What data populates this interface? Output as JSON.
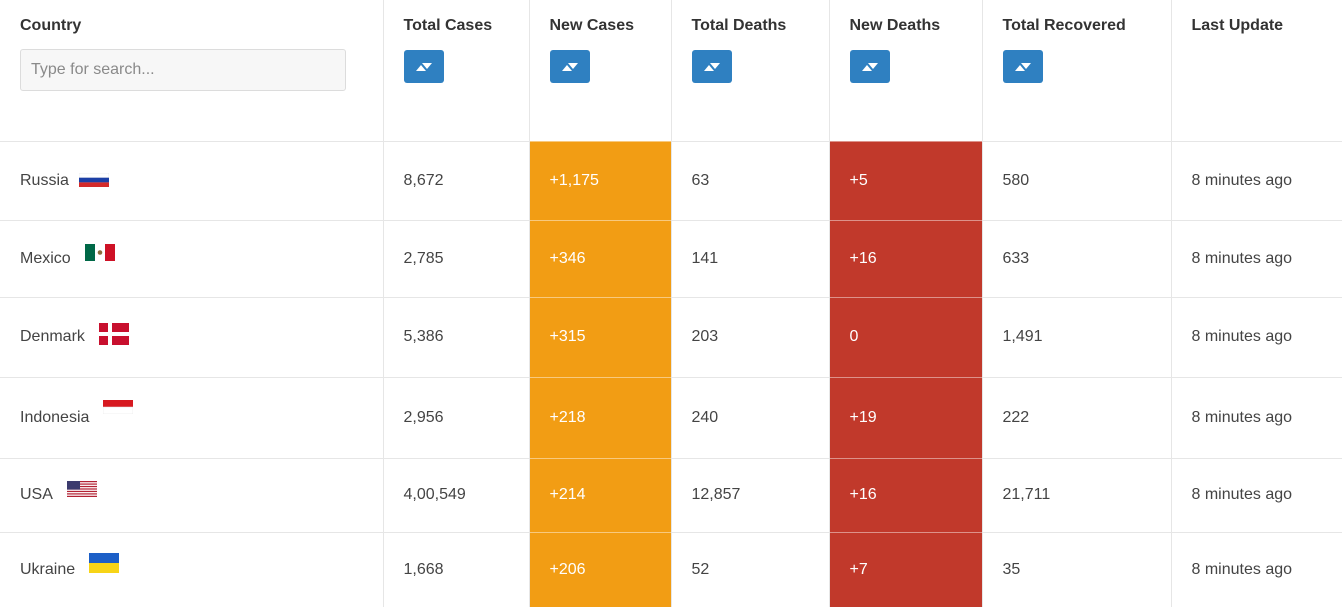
{
  "headers": {
    "country": "Country",
    "total_cases": "Total Cases",
    "new_cases": "New Cases",
    "total_deaths": "Total Deaths",
    "new_deaths": "New Deaths",
    "total_recovered": "Total Recovered",
    "last_update": "Last Update"
  },
  "search": {
    "placeholder": "Type for search..."
  },
  "sort_icon": "sort-toggle-icon",
  "colors": {
    "new_cases_bg": "#f29d14",
    "new_deaths_bg": "#c1392b",
    "sort_button_bg": "#2f80c1"
  },
  "rows": [
    {
      "country": "Russia",
      "flag": "russia-flag-icon",
      "total_cases": "8,672",
      "new_cases": "+1,175",
      "total_deaths": "63",
      "new_deaths": "+5",
      "total_recovered": "580",
      "last_update": "8 minutes ago"
    },
    {
      "country": "Mexico",
      "flag": "mexico-flag-icon",
      "total_cases": "2,785",
      "new_cases": "+346",
      "total_deaths": "141",
      "new_deaths": "+16",
      "total_recovered": "633",
      "last_update": "8 minutes ago"
    },
    {
      "country": "Denmark",
      "flag": "denmark-flag-icon",
      "total_cases": "5,386",
      "new_cases": "+315",
      "total_deaths": "203",
      "new_deaths": "0",
      "total_recovered": "1,491",
      "last_update": "8 minutes ago"
    },
    {
      "country": "Indonesia",
      "flag": "indonesia-flag-icon",
      "total_cases": "2,956",
      "new_cases": "+218",
      "total_deaths": "240",
      "new_deaths": "+19",
      "total_recovered": "222",
      "last_update": "8 minutes ago"
    },
    {
      "country": "USA",
      "flag": "usa-flag-icon",
      "total_cases": "4,00,549",
      "new_cases": "+214",
      "total_deaths": "12,857",
      "new_deaths": "+16",
      "total_recovered": "21,711",
      "last_update": "8 minutes ago"
    },
    {
      "country": "Ukraine",
      "flag": "ukraine-flag-icon",
      "total_cases": "1,668",
      "new_cases": "+206",
      "total_deaths": "52",
      "new_deaths": "+7",
      "total_recovered": "35",
      "last_update": "8 minutes ago"
    }
  ]
}
